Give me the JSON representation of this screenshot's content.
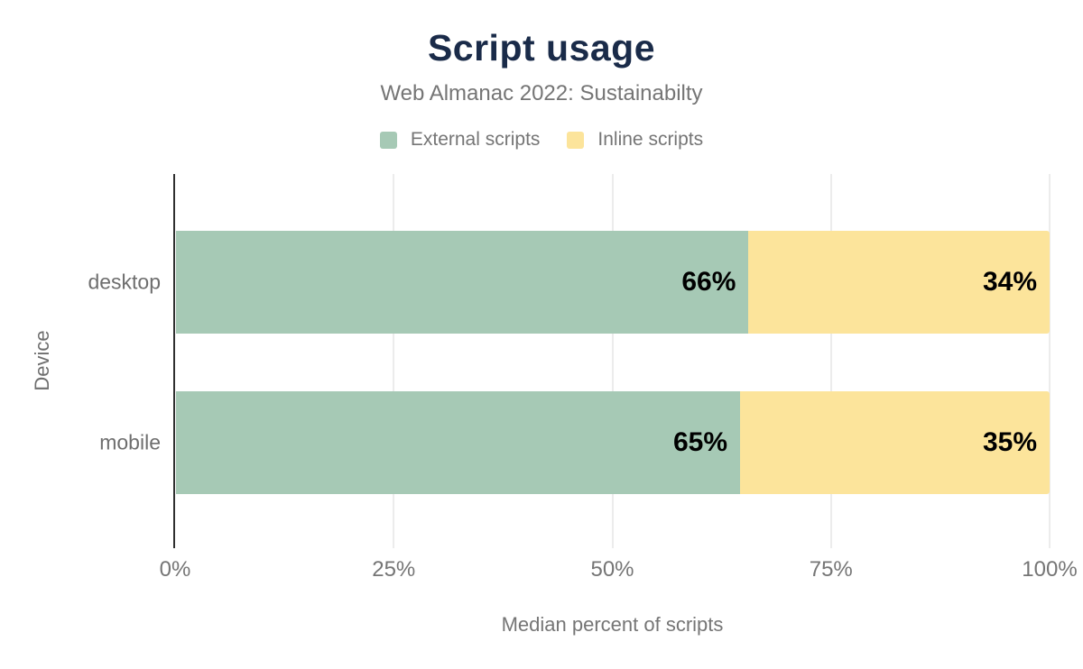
{
  "chart_data": {
    "type": "bar",
    "orientation": "horizontal",
    "stacked": true,
    "title": "Script usage",
    "subtitle": "Web Almanac 2022: Sustainabilty",
    "xlabel": "Median percent of scripts",
    "ylabel": "Device",
    "categories": [
      "desktop",
      "mobile"
    ],
    "series": [
      {
        "name": "External scripts",
        "color": "#a6c9b5",
        "values": [
          66,
          65
        ]
      },
      {
        "name": "Inline scripts",
        "color": "#fce49b",
        "values": [
          34,
          35
        ]
      }
    ],
    "data_labels": [
      [
        "66%",
        "34%"
      ],
      [
        "65%",
        "35%"
      ]
    ],
    "x_ticks": [
      {
        "label": "0%",
        "value": 0
      },
      {
        "label": "25%",
        "value": 25
      },
      {
        "label": "50%",
        "value": 50
      },
      {
        "label": "75%",
        "value": 75
      },
      {
        "label": "100%",
        "value": 100
      }
    ],
    "xlim": [
      0,
      100
    ],
    "grid": true,
    "legend_position": "top"
  },
  "colors": {
    "title": "#1a2b49",
    "muted_text": "#757575",
    "axis_line": "#2f2f2f",
    "gridline": "#ececec",
    "data_label": "#000000",
    "background": "#ffffff"
  }
}
